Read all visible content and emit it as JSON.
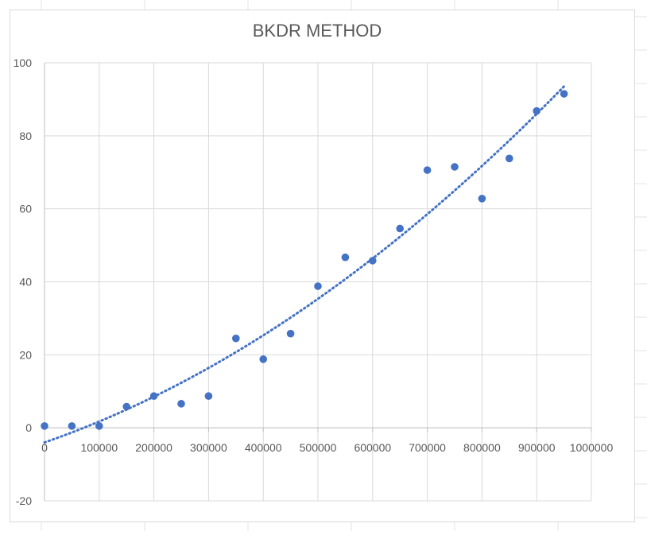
{
  "chart_data": {
    "type": "scatter",
    "title": "BKDR METHOD",
    "xlabel": "",
    "ylabel": "",
    "xlim": [
      0,
      1000000
    ],
    "ylim": [
      -20,
      100
    ],
    "x_ticks": [
      0,
      100000,
      200000,
      300000,
      400000,
      500000,
      600000,
      700000,
      800000,
      900000,
      1000000
    ],
    "y_ticks": [
      -20,
      0,
      20,
      40,
      60,
      80,
      100
    ],
    "x_tick_labels": [
      "0",
      "100000",
      "200000",
      "300000",
      "400000",
      "500000",
      "600000",
      "700000",
      "800000",
      "900000",
      "1000000"
    ],
    "y_tick_labels": [
      "-20",
      "0",
      "20",
      "40",
      "60",
      "80",
      "100"
    ],
    "grid": true,
    "legend": "none",
    "marker_color": "#4472C4",
    "trendline": {
      "type": "polynomial",
      "style": "dotted",
      "color": "#4472C4",
      "x_range": [
        0,
        950000
      ]
    },
    "series": [
      {
        "points": [
          {
            "x": 0,
            "y": 0.5
          },
          {
            "x": 50000,
            "y": 0.5
          },
          {
            "x": 100000,
            "y": 0.5
          },
          {
            "x": 150000,
            "y": 5.8
          },
          {
            "x": 200000,
            "y": 8.7
          },
          {
            "x": 250000,
            "y": 6.6
          },
          {
            "x": 300000,
            "y": 8.7
          },
          {
            "x": 350000,
            "y": 24.5
          },
          {
            "x": 400000,
            "y": 18.8
          },
          {
            "x": 450000,
            "y": 25.8
          },
          {
            "x": 500000,
            "y": 38.8
          },
          {
            "x": 550000,
            "y": 46.7
          },
          {
            "x": 600000,
            "y": 45.8
          },
          {
            "x": 650000,
            "y": 54.6
          },
          {
            "x": 700000,
            "y": 70.6
          },
          {
            "x": 750000,
            "y": 71.5
          },
          {
            "x": 800000,
            "y": 62.8
          },
          {
            "x": 850000,
            "y": 73.8
          },
          {
            "x": 900000,
            "y": 86.8
          },
          {
            "x": 950000,
            "y": 91.5
          }
        ]
      }
    ]
  }
}
